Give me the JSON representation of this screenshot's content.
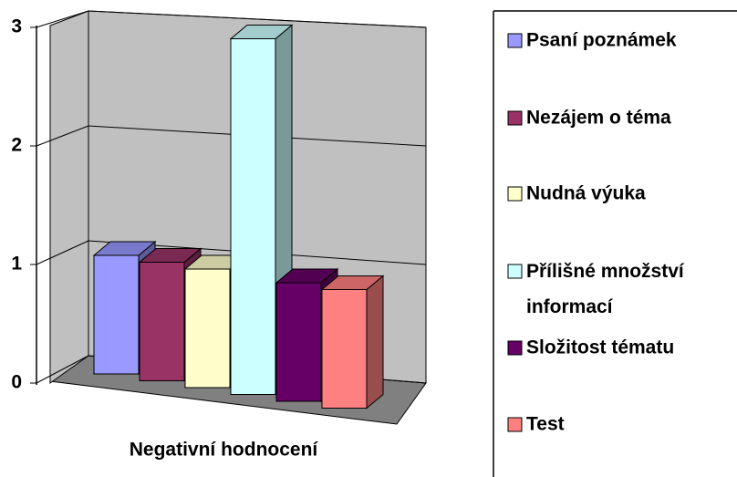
{
  "chart_data": {
    "type": "bar",
    "categories": [
      "Negativní hodnocení"
    ],
    "series": [
      {
        "name": "Psaní poznámek",
        "color": "#9999ff",
        "values": [
          1
        ]
      },
      {
        "name": "Nezájem o téma",
        "color": "#993366",
        "values": [
          1
        ]
      },
      {
        "name": "Nudná výuka",
        "color": "#ffffcc",
        "values": [
          1
        ]
      },
      {
        "name": "Přílišné množství informací",
        "color": "#ccffff",
        "values": [
          3
        ]
      },
      {
        "name": "Složitost tématu",
        "color": "#660066",
        "values": [
          1
        ]
      },
      {
        "name": "Test",
        "color": "#ff8080",
        "values": [
          1
        ]
      }
    ],
    "ylim": [
      0,
      3
    ],
    "yticks": [
      0,
      1,
      2,
      3
    ],
    "grid": true,
    "legend": "right"
  }
}
